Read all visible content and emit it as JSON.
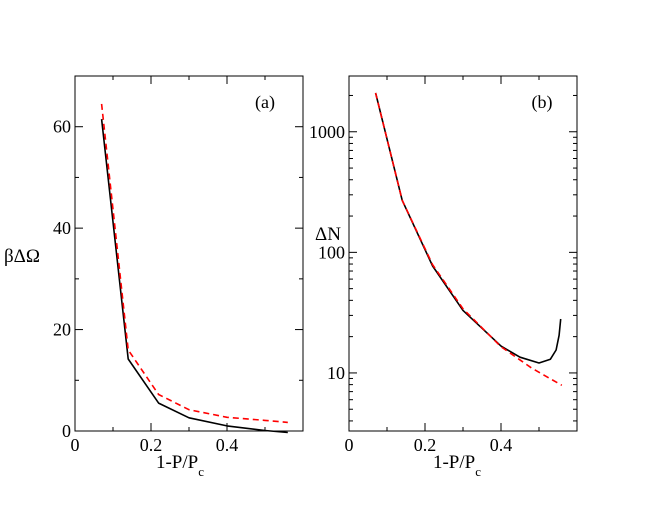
{
  "chart_data": [
    {
      "type": "line",
      "panel_label": "(a)",
      "xlabel_main": "1-P/P",
      "xlabel_sub": "c",
      "ylabel": "βΔΩ",
      "xlim": [
        0,
        0.6
      ],
      "ylim": [
        0,
        70
      ],
      "xscale": "linear",
      "yscale": "linear",
      "xticks": [
        0,
        0.2,
        0.4
      ],
      "xtick_labels": [
        "0",
        "0.2",
        "0.4"
      ],
      "yticks": [
        0,
        20,
        40,
        60
      ],
      "ytick_labels": [
        "0",
        "20",
        "40",
        "60"
      ],
      "grid": false,
      "series": [
        {
          "name": "solid",
          "color": "#000000",
          "style": "solid",
          "x": [
            0.07,
            0.14,
            0.22,
            0.3,
            0.4,
            0.5,
            0.56
          ],
          "y": [
            61.5,
            14.2,
            5.5,
            2.6,
            1.0,
            0.1,
            -0.3
          ]
        },
        {
          "name": "dashed",
          "color": "#ff0000",
          "style": "dashed",
          "x": [
            0.07,
            0.14,
            0.22,
            0.3,
            0.4,
            0.5,
            0.56
          ],
          "y": [
            64.5,
            16.0,
            7.2,
            4.2,
            2.7,
            2.1,
            1.7
          ]
        }
      ]
    },
    {
      "type": "line",
      "panel_label": "(b)",
      "xlabel_main": "1-P/P",
      "xlabel_sub": "c",
      "ylabel": "ΔN",
      "xlim": [
        0,
        0.6
      ],
      "ylim": [
        3.3,
        2900
      ],
      "xscale": "linear",
      "yscale": "log",
      "xticks": [
        0,
        0.2,
        0.4
      ],
      "xtick_labels": [
        "0",
        "0.2",
        "0.4"
      ],
      "yticks": [
        10,
        100,
        1000
      ],
      "ytick_labels": [
        "10",
        "100",
        "1000"
      ],
      "grid": false,
      "series": [
        {
          "name": "solid",
          "color": "#000000",
          "style": "solid",
          "x": [
            0.07,
            0.14,
            0.22,
            0.3,
            0.4,
            0.45,
            0.5,
            0.53,
            0.545,
            0.553,
            0.557
          ],
          "y": [
            2100,
            270,
            77,
            33,
            16.7,
            13.5,
            12.1,
            13.0,
            15.5,
            20.5,
            28
          ]
        },
        {
          "name": "dashed",
          "color": "#ff0000",
          "style": "dashed",
          "x": [
            0.07,
            0.14,
            0.22,
            0.3,
            0.4,
            0.48,
            0.56
          ],
          "y": [
            2100,
            270,
            79,
            34,
            16.5,
            11.0,
            7.9
          ]
        }
      ]
    }
  ]
}
